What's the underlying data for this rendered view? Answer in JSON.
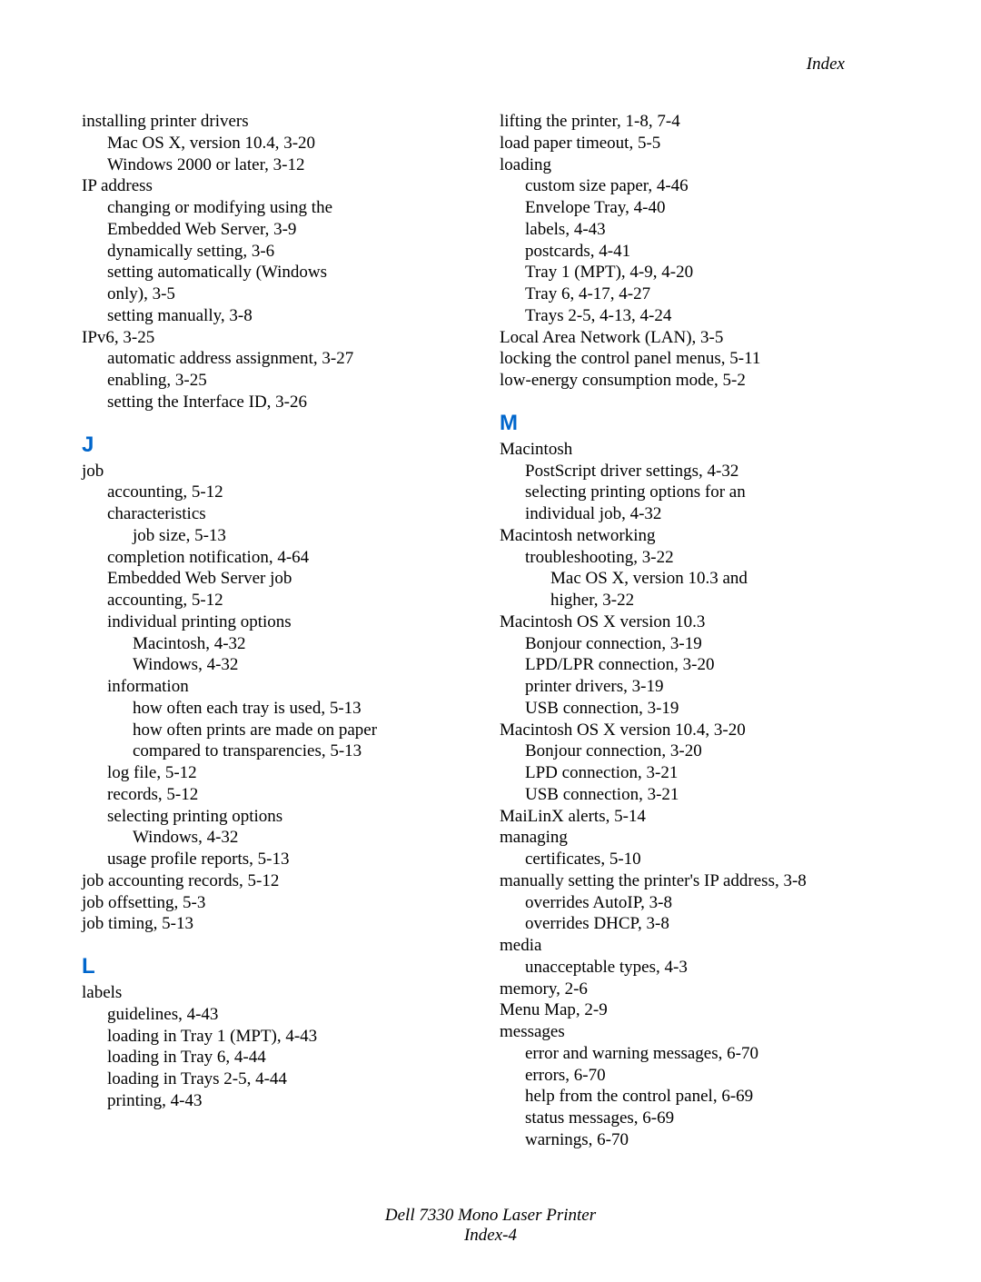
{
  "running_head": "Index",
  "footer_line1": "Dell 7330 Mono Laser Printer",
  "footer_line2": "Index-4",
  "left": {
    "installing": {
      "t": "installing printer drivers",
      "mac": "Mac OS X, version 10.4, 3-20",
      "win": "Windows 2000 or later, 3-12"
    },
    "ip": {
      "t": "IP address",
      "l1a": "changing or modifying using the",
      "l1b": "Embedded Web Server, 3-9",
      "dyn": "dynamically setting, 3-6",
      "autoa": "setting automatically (Windows",
      "autob": "only), 3-5",
      "man": "setting manually, 3-8"
    },
    "ipv6": {
      "t": "IPv6, 3-25",
      "auto": "automatic address assignment, 3-27",
      "en": "enabling, 3-25",
      "iid": "setting the Interface ID, 3-26"
    },
    "J": "J",
    "job": {
      "t": "job",
      "acc": "accounting, 5-12",
      "char": "characteristics",
      "size": "job size, 5-13",
      "comp": "completion notification, 4-64",
      "ewsa": "Embedded Web Server job",
      "ewsb": "accounting, 5-12",
      "ind": "individual printing options",
      "mac": "Macintosh, 4-32",
      "win": "Windows, 4-32",
      "info": "information",
      "tray": "how often each tray is used, 5-13",
      "prta": "how often prints are made on paper",
      "prtb": "compared to transparencies, 5-13",
      "log": "log file, 5-12",
      "rec": "records, 5-12",
      "sel": "selecting printing options",
      "selw": "Windows, 4-32",
      "usage": "usage profile reports, 5-13"
    },
    "jar": "job accounting records, 5-12",
    "joff": "job offsetting, 5-3",
    "jtim": "job timing, 5-13",
    "L": "L",
    "labels": {
      "t": "labels",
      "gl": "guidelines, 4-43",
      "t1": "loading in Tray 1 (MPT), 4-43",
      "t6": "loading in Tray 6, 4-44",
      "t25": "loading in Trays 2-5, 4-44",
      "pr": "printing, 4-43"
    }
  },
  "right": {
    "lift": "lifting the printer, 1-8, 7-4",
    "lpt": "load paper timeout, 5-5",
    "loading": {
      "t": "loading",
      "csp": "custom size paper, 4-46",
      "env": "Envelope Tray, 4-40",
      "lab": "labels, 4-43",
      "pc": "postcards, 4-41",
      "t1": "Tray 1 (MPT), 4-9, 4-20",
      "t6": "Tray 6, 4-17, 4-27",
      "t25": "Trays 2-5, 4-13, 4-24"
    },
    "lan": "Local Area Network (LAN), 3-5",
    "lock": "locking the control panel menus, 5-11",
    "low": "low-energy consumption mode, 5-2",
    "M": "M",
    "mac": {
      "t": "Macintosh",
      "ps": "PostScript driver settings, 4-32",
      "sela": "selecting printing options for an",
      "selb": "individual job, 4-32"
    },
    "macnet": {
      "t": "Macintosh networking",
      "ts": "troubleshooting, 3-22",
      "osxa": "Mac OS X, version 10.3 and",
      "osxb": "higher, 3-22"
    },
    "osx103": {
      "t": "Macintosh OS X version 10.3",
      "bon": "Bonjour connection, 3-19",
      "lpd": "LPD/LPR connection, 3-20",
      "drv": "printer drivers, 3-19",
      "usb": "USB connection, 3-19"
    },
    "osx104": {
      "t": "Macintosh OS X version 10.4, 3-20",
      "bon": "Bonjour connection, 3-20",
      "lpd": "LPD connection, 3-21",
      "usb": "USB connection, 3-21"
    },
    "mailinx": "MaiLinX alerts, 5-14",
    "managing": {
      "t": "managing",
      "cert": "certificates, 5-10"
    },
    "manip": {
      "t": "manually setting the printer's IP address, 3-8",
      "auto": "overrides AutoIP, 3-8",
      "dhcp": "overrides DHCP, 3-8"
    },
    "media": {
      "t": "media",
      "un": "unacceptable types, 4-3"
    },
    "memory": "memory, 2-6",
    "menumap": "Menu Map, 2-9",
    "messages": {
      "t": "messages",
      "err": "error and warning messages, 6-70",
      "errs": "errors, 6-70",
      "help": "help from the control panel, 6-69",
      "stat": "status messages, 6-69",
      "warn": "warnings, 6-70"
    }
  }
}
